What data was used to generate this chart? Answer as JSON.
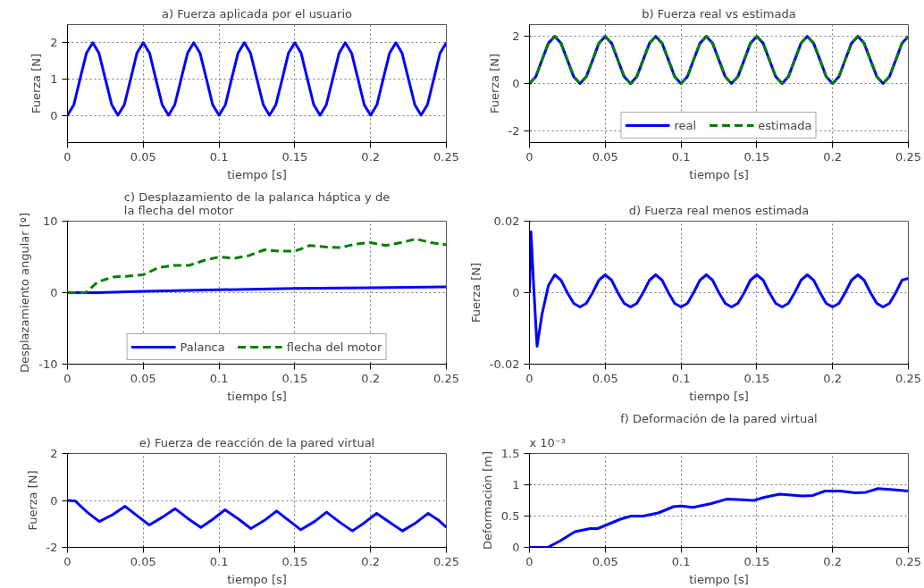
{
  "chart_data": [
    {
      "type": "line",
      "title": "a) Fuerza aplicada por el usuario",
      "xlabel": "tiempo [s]",
      "ylabel": "Fuerza [N]",
      "xlim": [
        0,
        0.25
      ],
      "ylim": [
        -0.75,
        2.5
      ],
      "xticks": [
        0,
        0.05,
        0.1,
        0.15,
        0.2,
        0.25
      ],
      "yticks": [
        0,
        1,
        2
      ],
      "grid": true,
      "color": "#0000ff",
      "x": [
        0,
        0.0042,
        0.0083,
        0.0125,
        0.0167,
        0.0208,
        0.025,
        0.0292,
        0.0333,
        0.0375,
        0.0417,
        0.0458,
        0.05,
        0.0542,
        0.0583,
        0.0625,
        0.0667,
        0.0708,
        0.075,
        0.0792,
        0.0833,
        0.0875,
        0.0917,
        0.0958,
        0.1,
        0.1042,
        0.1083,
        0.1125,
        0.1167,
        0.1208,
        0.125,
        0.1292,
        0.1333,
        0.1375,
        0.1417,
        0.1458,
        0.15,
        0.1542,
        0.1583,
        0.1625,
        0.1667,
        0.1708,
        0.175,
        0.1792,
        0.1833,
        0.1875,
        0.1917,
        0.1958,
        0.2,
        0.2042,
        0.2083,
        0.2125,
        0.2167,
        0.2208,
        0.225,
        0.2292,
        0.2333,
        0.2375,
        0.2417,
        0.2458,
        0.25
      ],
      "values": [
        0,
        0.29,
        1,
        1.71,
        2,
        1.71,
        1,
        0.29,
        0,
        0.29,
        1,
        1.71,
        2,
        1.71,
        1,
        0.29,
        0,
        0.29,
        1,
        1.71,
        2,
        1.71,
        1,
        0.29,
        0,
        0.29,
        1,
        1.71,
        2,
        1.71,
        1,
        0.29,
        0,
        0.29,
        1,
        1.71,
        2,
        1.71,
        1,
        0.29,
        0,
        0.29,
        1,
        1.71,
        2,
        1.71,
        1,
        0.29,
        0,
        0.29,
        1,
        1.71,
        2,
        1.71,
        1,
        0.29,
        0,
        0.29,
        1,
        1.71,
        2
      ]
    },
    {
      "type": "line",
      "title": "b) Fuerza real vs estimada",
      "xlabel": "tiempo [s]",
      "ylabel": "Fuerza [N]",
      "xlim": [
        0,
        0.25
      ],
      "ylim": [
        -2.5,
        2.5
      ],
      "xticks": [
        0,
        0.05,
        0.1,
        0.15,
        0.2,
        0.25
      ],
      "yticks": [
        -2,
        0,
        2
      ],
      "grid": true,
      "legend": "bottom",
      "x": [
        0,
        0.0042,
        0.0083,
        0.0125,
        0.0167,
        0.0208,
        0.025,
        0.0292,
        0.0333,
        0.0375,
        0.0417,
        0.0458,
        0.05,
        0.0542,
        0.0583,
        0.0625,
        0.0667,
        0.0708,
        0.075,
        0.0792,
        0.0833,
        0.0875,
        0.0917,
        0.0958,
        0.1,
        0.1042,
        0.1083,
        0.1125,
        0.1167,
        0.1208,
        0.125,
        0.1292,
        0.1333,
        0.1375,
        0.1417,
        0.1458,
        0.15,
        0.1542,
        0.1583,
        0.1625,
        0.1667,
        0.1708,
        0.175,
        0.1792,
        0.1833,
        0.1875,
        0.1917,
        0.1958,
        0.2,
        0.2042,
        0.2083,
        0.2125,
        0.2167,
        0.2208,
        0.225,
        0.2292,
        0.2333,
        0.2375,
        0.2417,
        0.2458,
        0.25
      ],
      "series": [
        {
          "name": "real",
          "color": "#0000ff",
          "line_style": "solid",
          "values": [
            0,
            0.29,
            1,
            1.71,
            2,
            1.71,
            1,
            0.29,
            0,
            0.29,
            1,
            1.71,
            2,
            1.71,
            1,
            0.29,
            0,
            0.29,
            1,
            1.71,
            2,
            1.71,
            1,
            0.29,
            0,
            0.29,
            1,
            1.71,
            2,
            1.71,
            1,
            0.29,
            0,
            0.29,
            1,
            1.71,
            2,
            1.71,
            1,
            0.29,
            0,
            0.29,
            1,
            1.71,
            2,
            1.71,
            1,
            0.29,
            0,
            0.29,
            1,
            1.71,
            2,
            1.71,
            1,
            0.29,
            0,
            0.29,
            1,
            1.71,
            2
          ]
        },
        {
          "name": "estimada",
          "color": "#008000",
          "line_style": "dashed",
          "values": [
            0,
            0.29,
            1,
            1.71,
            2,
            1.71,
            1,
            0.29,
            0,
            0.29,
            1,
            1.71,
            2,
            1.71,
            1,
            0.29,
            0,
            0.29,
            1,
            1.71,
            2,
            1.71,
            1,
            0.29,
            0,
            0.29,
            1,
            1.71,
            2,
            1.71,
            1,
            0.29,
            0,
            0.29,
            1,
            1.71,
            2,
            1.71,
            1,
            0.29,
            0,
            0.29,
            1,
            1.71,
            2,
            1.71,
            1,
            0.29,
            0,
            0.29,
            1,
            1.71,
            2,
            1.71,
            1,
            0.29,
            0,
            0.29,
            1,
            1.71,
            2
          ]
        }
      ]
    },
    {
      "type": "line",
      "title": "c) Desplazamiento de la palanca háptica y de la flecha del motor",
      "xlabel": "tiempo [s]",
      "ylabel": "Desplazamiento angular [º]",
      "xlim": [
        0,
        0.25
      ],
      "ylim": [
        -10,
        10
      ],
      "xticks": [
        0,
        0.05,
        0.1,
        0.15,
        0.2,
        0.25
      ],
      "yticks": [
        -10,
        0,
        10
      ],
      "grid": true,
      "legend": "bottom",
      "series": [
        {
          "name": "Palanca",
          "color": "#0000ff",
          "line_style": "solid",
          "x": [
            0,
            0.02,
            0.05,
            0.1,
            0.15,
            0.2,
            0.25
          ],
          "values": [
            0,
            0,
            0.2,
            0.4,
            0.6,
            0.7,
            0.8
          ]
        },
        {
          "name": "flecha del motor",
          "color": "#008000",
          "line_style": "dashed",
          "x": [
            0,
            0.012,
            0.02,
            0.03,
            0.04,
            0.05,
            0.06,
            0.07,
            0.08,
            0.09,
            0.1,
            0.11,
            0.12,
            0.13,
            0.14,
            0.15,
            0.16,
            0.17,
            0.18,
            0.19,
            0.2,
            0.21,
            0.22,
            0.23,
            0.24,
            0.25
          ],
          "values": [
            0,
            0,
            1.5,
            2.2,
            2.3,
            2.5,
            3.5,
            3.8,
            3.8,
            4.5,
            5,
            4.8,
            5.2,
            6,
            5.8,
            5.8,
            6.6,
            6.4,
            6.3,
            6.8,
            7,
            6.6,
            7,
            7.5,
            7,
            6.7
          ]
        }
      ]
    },
    {
      "type": "line",
      "title": "d) Fuerza real menos estimada",
      "xlabel": "tiempo [s]",
      "ylabel": "Fuerza [N]",
      "xlim": [
        0,
        0.25
      ],
      "ylim": [
        -0.02,
        0.02
      ],
      "xticks": [
        0,
        0.05,
        0.1,
        0.15,
        0.2,
        0.25
      ],
      "yticks": [
        -0.02,
        0,
        0.02
      ],
      "grid": true,
      "color": "#0000ff",
      "x": [
        0,
        0.001,
        0.003,
        0.005,
        0.0083,
        0.0125,
        0.0167,
        0.0208,
        0.025,
        0.0292,
        0.0333,
        0.0375,
        0.0417,
        0.0458,
        0.05,
        0.0542,
        0.0583,
        0.0625,
        0.0667,
        0.0708,
        0.075,
        0.0792,
        0.0833,
        0.0875,
        0.0917,
        0.0958,
        0.1,
        0.1042,
        0.1083,
        0.1125,
        0.1167,
        0.1208,
        0.125,
        0.1292,
        0.1333,
        0.1375,
        0.1417,
        0.1458,
        0.15,
        0.1542,
        0.1583,
        0.1625,
        0.1667,
        0.1708,
        0.175,
        0.1792,
        0.1833,
        0.1875,
        0.1917,
        0.1958,
        0.2,
        0.2042,
        0.2083,
        0.2125,
        0.2167,
        0.2208,
        0.225,
        0.2292,
        0.2333,
        0.2375,
        0.2417,
        0.2458,
        0.25
      ],
      "values": [
        0,
        0.017,
        0,
        -0.015,
        -0.006,
        0.002,
        0.005,
        0.0035,
        0,
        -0.003,
        -0.004,
        -0.003,
        0,
        0.0035,
        0.005,
        0.0035,
        0,
        -0.003,
        -0.004,
        -0.003,
        0,
        0.0035,
        0.005,
        0.0035,
        0,
        -0.003,
        -0.004,
        -0.003,
        0,
        0.0035,
        0.005,
        0.0035,
        0,
        -0.003,
        -0.004,
        -0.003,
        0,
        0.0035,
        0.005,
        0.0035,
        0,
        -0.003,
        -0.004,
        -0.003,
        0,
        0.0035,
        0.005,
        0.0035,
        0,
        -0.003,
        -0.004,
        -0.003,
        0,
        0.0035,
        0.005,
        0.0035,
        0,
        -0.003,
        -0.004,
        -0.003,
        0,
        0.0035,
        0.004
      ]
    },
    {
      "type": "line",
      "title": "e) Fuerza de reacción de la pared virtual",
      "xlabel": "tiempo [s]",
      "ylabel": "Fuerza [N]",
      "xlim": [
        0,
        0.25
      ],
      "ylim": [
        -2,
        2
      ],
      "xticks": [
        0,
        0.05,
        0.1,
        0.15,
        0.2,
        0.25
      ],
      "yticks": [
        -2,
        0,
        2
      ],
      "grid": true,
      "color": "#0000ff",
      "x": [
        0,
        0.005,
        0.013,
        0.021,
        0.03,
        0.038,
        0.046,
        0.054,
        0.063,
        0.071,
        0.079,
        0.088,
        0.096,
        0.104,
        0.113,
        0.121,
        0.13,
        0.138,
        0.146,
        0.154,
        0.163,
        0.171,
        0.179,
        0.188,
        0.196,
        0.204,
        0.213,
        0.221,
        0.23,
        0.238,
        0.245,
        0.25
      ],
      "values": [
        0,
        -0.02,
        -0.5,
        -0.9,
        -0.6,
        -0.25,
        -0.65,
        -1.05,
        -0.7,
        -0.35,
        -0.75,
        -1.15,
        -0.8,
        -0.4,
        -0.8,
        -1.2,
        -0.85,
        -0.45,
        -0.85,
        -1.25,
        -0.9,
        -0.5,
        -0.9,
        -1.3,
        -0.95,
        -0.55,
        -0.95,
        -1.3,
        -0.95,
        -0.55,
        -0.85,
        -1.15
      ]
    },
    {
      "type": "line",
      "title": "f) Deformación de la pared virtual",
      "xlabel": "tiempo [s]",
      "ylabel": "Deformación [m]",
      "xlim": [
        0,
        0.25
      ],
      "ylim": [
        0,
        1.5
      ],
      "xticks": [
        0,
        0.05,
        0.1,
        0.15,
        0.2,
        0.25
      ],
      "yticks": [
        0,
        0.5,
        1,
        1.5
      ],
      "grid": true,
      "color": "#0000ff",
      "annotations": [
        "x 10⁻³"
      ],
      "x": [
        0,
        0.012,
        0.02,
        0.03,
        0.04,
        0.045,
        0.05,
        0.06,
        0.067,
        0.075,
        0.085,
        0.095,
        0.1,
        0.108,
        0.12,
        0.13,
        0.14,
        0.148,
        0.155,
        0.165,
        0.18,
        0.187,
        0.195,
        0.205,
        0.215,
        0.222,
        0.23,
        0.24,
        0.25
      ],
      "values": [
        0,
        0,
        0.1,
        0.25,
        0.3,
        0.3,
        0.35,
        0.45,
        0.5,
        0.5,
        0.55,
        0.65,
        0.66,
        0.64,
        0.7,
        0.77,
        0.76,
        0.75,
        0.8,
        0.85,
        0.82,
        0.83,
        0.9,
        0.9,
        0.87,
        0.88,
        0.94,
        0.92,
        0.9
      ]
    }
  ]
}
